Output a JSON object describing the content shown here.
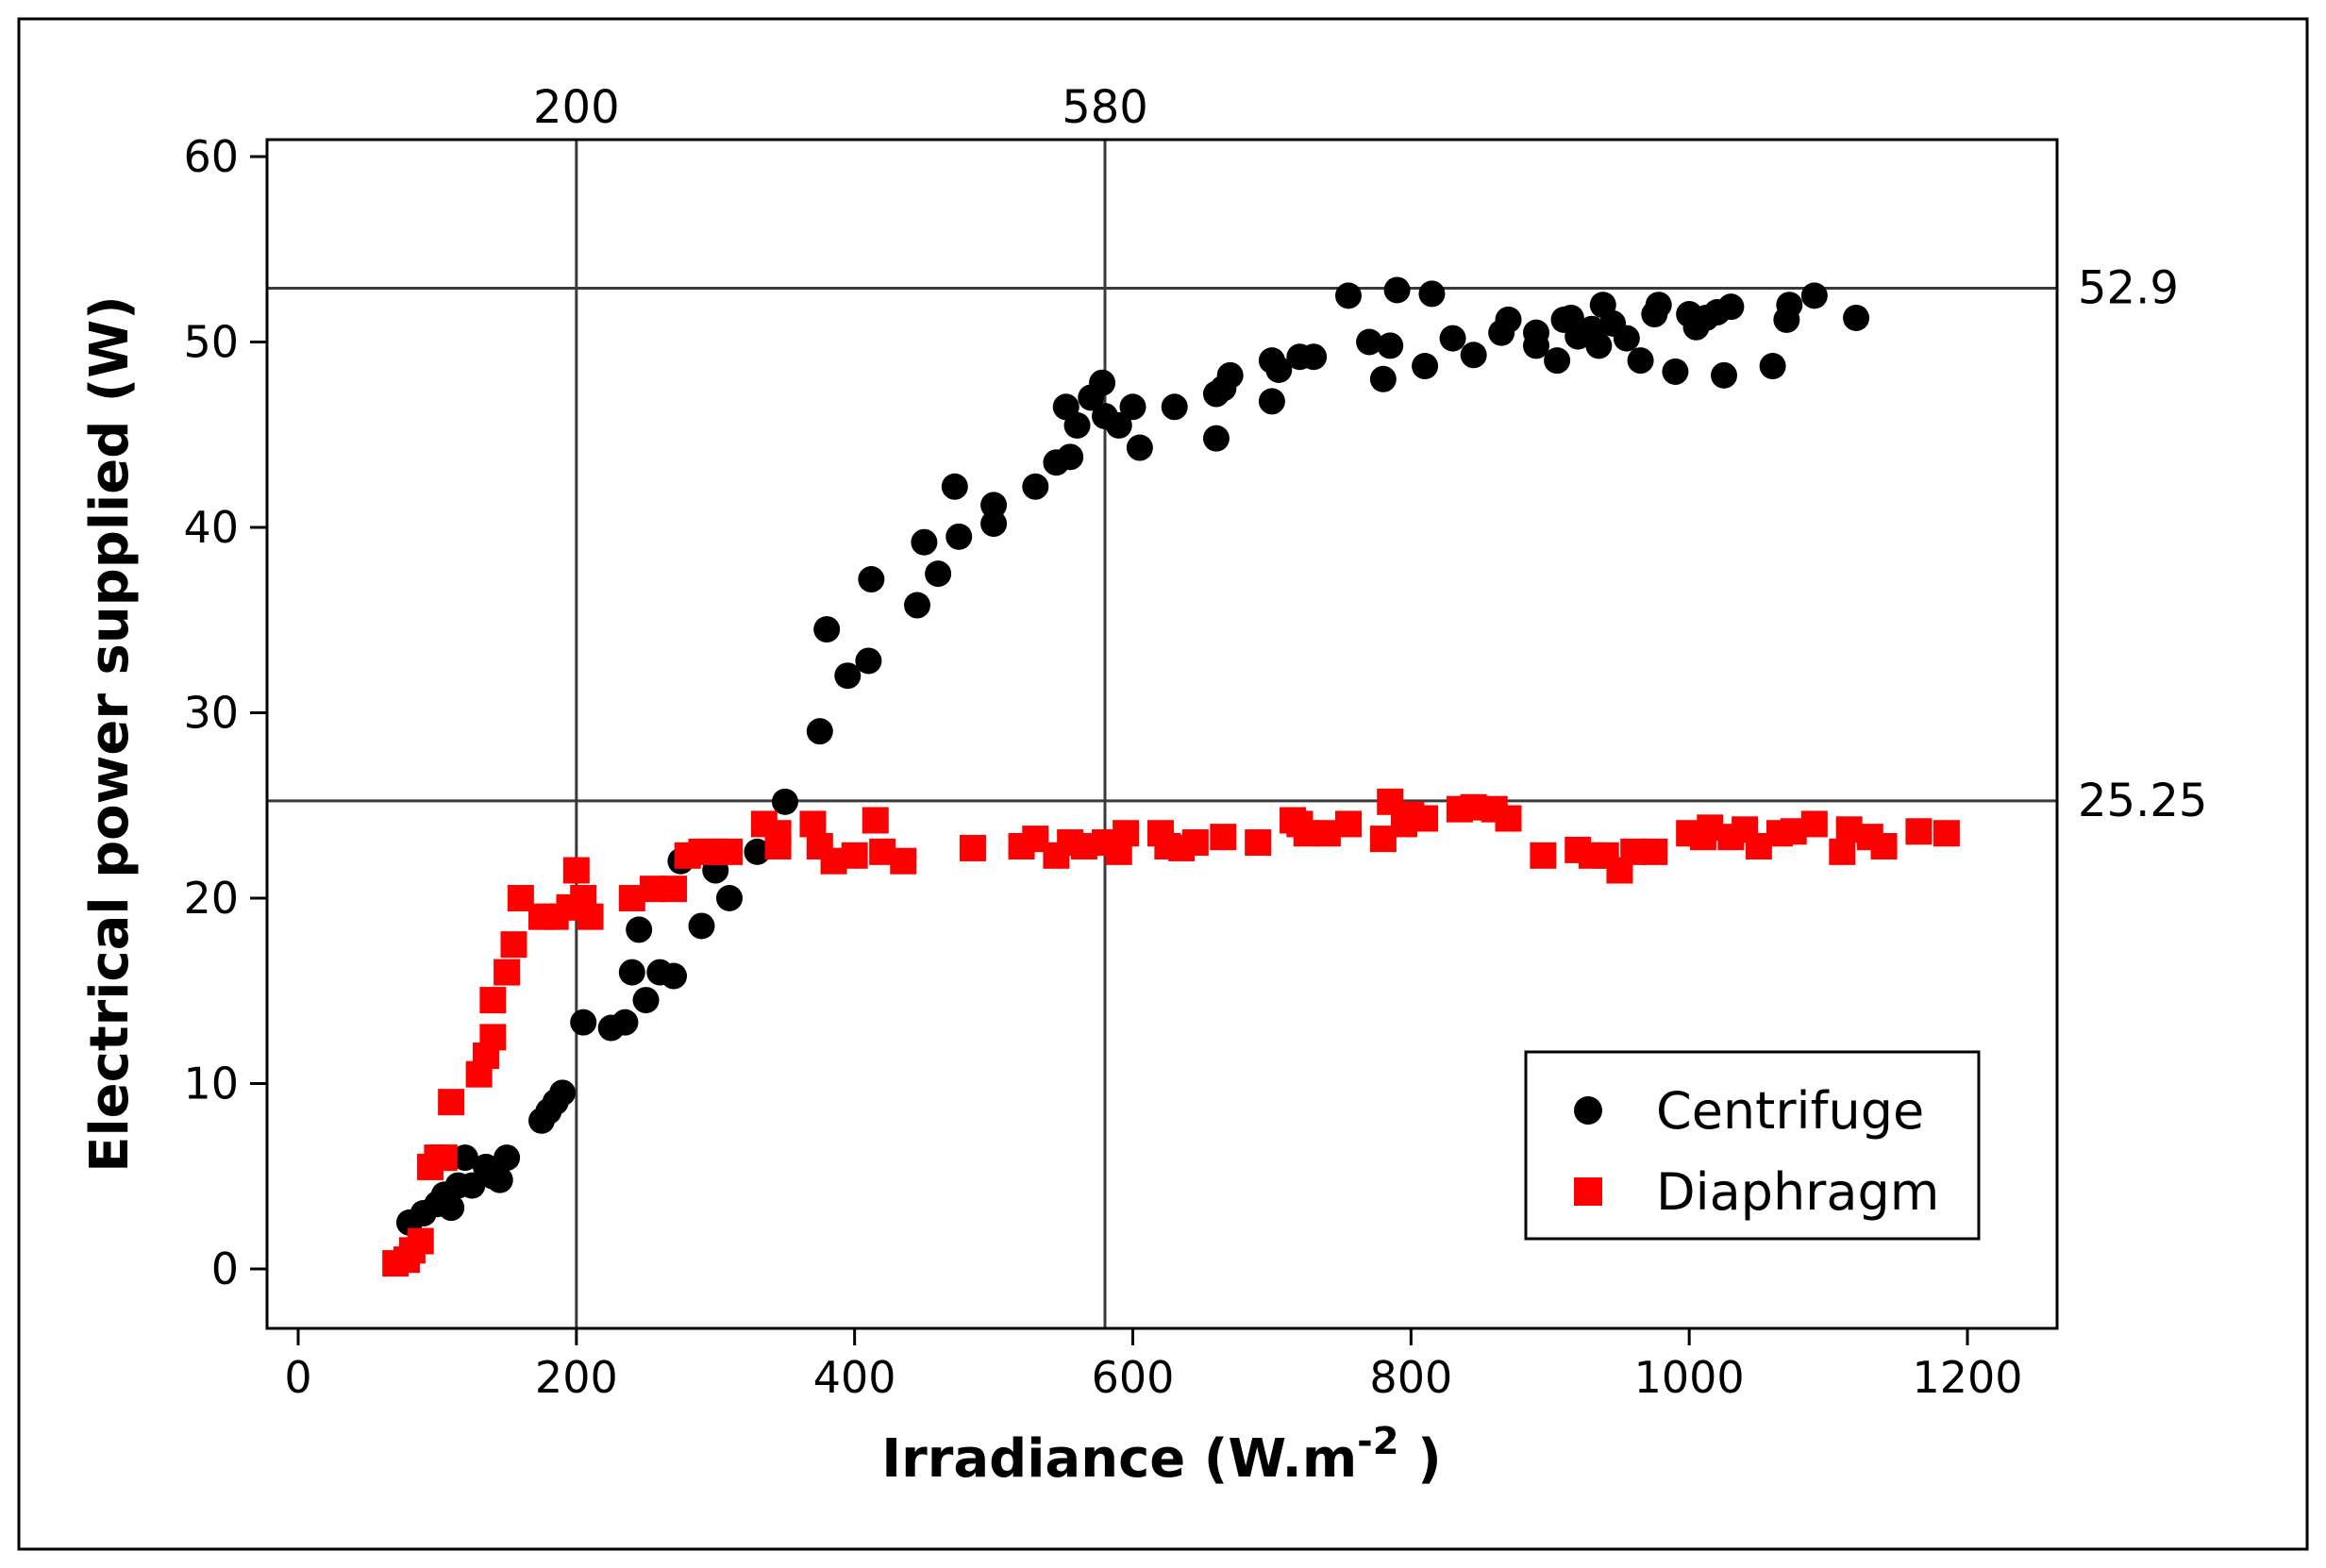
{
  "chart_data": {
    "type": "scatter",
    "title": "",
    "xlabel": "Irradiance (W.m",
    "xlabel_superscript": "-2",
    "xlabel_suffix": " )",
    "ylabel": "Electrical power supplied (W)",
    "xlim": [
      -25,
      1260
    ],
    "ylim": [
      -3,
      61
    ],
    "x_ticks": [
      0,
      200,
      400,
      600,
      800,
      1000,
      1200
    ],
    "y_ticks": [
      0,
      10,
      20,
      30,
      40,
      50,
      60
    ],
    "grid": false,
    "legend_position": "bottom-right",
    "reference_lines": {
      "vertical": [
        {
          "x": 200,
          "label": "200"
        },
        {
          "x": 580,
          "label": "580"
        }
      ],
      "horizontal": [
        {
          "y": 52.9,
          "label": "52.9"
        },
        {
          "y": 25.25,
          "label": "25.25"
        }
      ]
    },
    "series": [
      {
        "name": "Centrifuge",
        "marker": "circle",
        "color": "#000000",
        "points": [
          [
            80,
            2.5
          ],
          [
            90,
            3
          ],
          [
            100,
            3.5
          ],
          [
            105,
            4
          ],
          [
            110,
            3.3
          ],
          [
            115,
            4.5
          ],
          [
            120,
            6
          ],
          [
            125,
            4.5
          ],
          [
            135,
            5.5
          ],
          [
            140,
            5
          ],
          [
            145,
            4.8
          ],
          [
            150,
            6
          ],
          [
            175,
            8
          ],
          [
            180,
            8.5
          ],
          [
            185,
            9
          ],
          [
            190,
            9.5
          ],
          [
            205,
            13.3
          ],
          [
            225,
            13
          ],
          [
            235,
            13.3
          ],
          [
            240,
            16
          ],
          [
            245,
            18.3
          ],
          [
            250,
            14.5
          ],
          [
            260,
            16
          ],
          [
            270,
            15.8
          ],
          [
            275,
            22
          ],
          [
            290,
            18.5
          ],
          [
            300,
            21.5
          ],
          [
            310,
            20
          ],
          [
            330,
            22.5
          ],
          [
            350,
            25.2
          ],
          [
            375,
            29
          ],
          [
            380,
            34.5
          ],
          [
            395,
            32
          ],
          [
            410,
            32.8
          ],
          [
            412,
            37.2
          ],
          [
            445,
            35.8
          ],
          [
            450,
            39.2
          ],
          [
            460,
            37.5
          ],
          [
            472,
            42.2
          ],
          [
            475,
            39.5
          ],
          [
            500,
            40.2
          ],
          [
            500,
            41.2
          ],
          [
            530,
            42.2
          ],
          [
            545,
            43.5
          ],
          [
            552,
            46.5
          ],
          [
            555,
            43.8
          ],
          [
            560,
            45.5
          ],
          [
            570,
            47
          ],
          [
            578,
            47.8
          ],
          [
            580,
            46
          ],
          [
            590,
            45.5
          ],
          [
            600,
            46.5
          ],
          [
            605,
            44.3
          ],
          [
            630,
            46.5
          ],
          [
            660,
            44.8
          ],
          [
            660,
            47.2
          ],
          [
            665,
            47.5
          ],
          [
            670,
            48.2
          ],
          [
            700,
            46.8
          ],
          [
            700,
            49
          ],
          [
            705,
            48.5
          ],
          [
            720,
            49.2
          ],
          [
            730,
            49.2
          ],
          [
            755,
            52.5
          ],
          [
            770,
            50
          ],
          [
            780,
            48
          ],
          [
            785,
            49.8
          ],
          [
            790,
            52.8
          ],
          [
            810,
            48.7
          ],
          [
            815,
            52.6
          ],
          [
            830,
            50.2
          ],
          [
            845,
            49.3
          ],
          [
            865,
            50.5
          ],
          [
            870,
            51.2
          ],
          [
            890,
            50.5
          ],
          [
            890,
            49.8
          ],
          [
            905,
            49
          ],
          [
            910,
            51.2
          ],
          [
            915,
            51.3
          ],
          [
            920,
            50.3
          ],
          [
            930,
            50.7
          ],
          [
            935,
            49.8
          ],
          [
            938,
            52
          ],
          [
            945,
            51
          ],
          [
            955,
            50.2
          ],
          [
            965,
            49
          ],
          [
            975,
            51.5
          ],
          [
            978,
            52
          ],
          [
            990,
            48.4
          ],
          [
            1000,
            51.5
          ],
          [
            1005,
            50.8
          ],
          [
            1012,
            51.3
          ],
          [
            1020,
            51.6
          ],
          [
            1025,
            48.2
          ],
          [
            1030,
            51.9
          ],
          [
            1060,
            48.7
          ],
          [
            1070,
            51.2
          ],
          [
            1072,
            52
          ],
          [
            1090,
            52.5
          ],
          [
            1120,
            51.3
          ]
        ]
      },
      {
        "name": "Diaphragm",
        "marker": "square",
        "color": "#ff0000",
        "points": [
          [
            70,
            0.3
          ],
          [
            78,
            0.5
          ],
          [
            82,
            1
          ],
          [
            88,
            1.5
          ],
          [
            95,
            5.5
          ],
          [
            100,
            6
          ],
          [
            105,
            6
          ],
          [
            110,
            9
          ],
          [
            130,
            10.5
          ],
          [
            135,
            11.5
          ],
          [
            140,
            12.5
          ],
          [
            140,
            14.5
          ],
          [
            150,
            16
          ],
          [
            155,
            17.5
          ],
          [
            160,
            20
          ],
          [
            175,
            19
          ],
          [
            185,
            19
          ],
          [
            195,
            19.5
          ],
          [
            200,
            21.5
          ],
          [
            205,
            20
          ],
          [
            210,
            19
          ],
          [
            240,
            20
          ],
          [
            255,
            20.5
          ],
          [
            270,
            20.5
          ],
          [
            280,
            22.3
          ],
          [
            290,
            22.5
          ],
          [
            300,
            22.5
          ],
          [
            310,
            22.5
          ],
          [
            335,
            24
          ],
          [
            345,
            22.8
          ],
          [
            345,
            23.5
          ],
          [
            370,
            24
          ],
          [
            375,
            22.8
          ],
          [
            385,
            22
          ],
          [
            400,
            22.3
          ],
          [
            415,
            24.2
          ],
          [
            420,
            22.5
          ],
          [
            435,
            22
          ],
          [
            485,
            22.7
          ],
          [
            520,
            22.8
          ],
          [
            530,
            23.2
          ],
          [
            545,
            22.3
          ],
          [
            555,
            23
          ],
          [
            565,
            22.8
          ],
          [
            580,
            23
          ],
          [
            590,
            22.5
          ],
          [
            595,
            23.5
          ],
          [
            620,
            23.5
          ],
          [
            625,
            22.8
          ],
          [
            635,
            22.7
          ],
          [
            645,
            23
          ],
          [
            665,
            23.3
          ],
          [
            690,
            23
          ],
          [
            715,
            24.2
          ],
          [
            720,
            24
          ],
          [
            725,
            23.5
          ],
          [
            740,
            23.5
          ],
          [
            755,
            24
          ],
          [
            780,
            23.2
          ],
          [
            785,
            25.2
          ],
          [
            795,
            24
          ],
          [
            800,
            24.5
          ],
          [
            810,
            24.3
          ],
          [
            835,
            24.8
          ],
          [
            845,
            24.9
          ],
          [
            860,
            24.8
          ],
          [
            870,
            24.3
          ],
          [
            895,
            22.3
          ],
          [
            920,
            22.6
          ],
          [
            930,
            22.3
          ],
          [
            940,
            22.3
          ],
          [
            950,
            21.5
          ],
          [
            960,
            22.5
          ],
          [
            975,
            22.5
          ],
          [
            1000,
            23.5
          ],
          [
            1010,
            23.3
          ],
          [
            1015,
            23.8
          ],
          [
            1030,
            23.3
          ],
          [
            1040,
            23.7
          ],
          [
            1050,
            22.8
          ],
          [
            1065,
            23.5
          ],
          [
            1075,
            23.6
          ],
          [
            1090,
            24
          ],
          [
            1110,
            22.5
          ],
          [
            1115,
            23.7
          ],
          [
            1130,
            23.3
          ],
          [
            1140,
            22.8
          ],
          [
            1165,
            23.6
          ],
          [
            1185,
            23.5
          ]
        ]
      }
    ]
  }
}
